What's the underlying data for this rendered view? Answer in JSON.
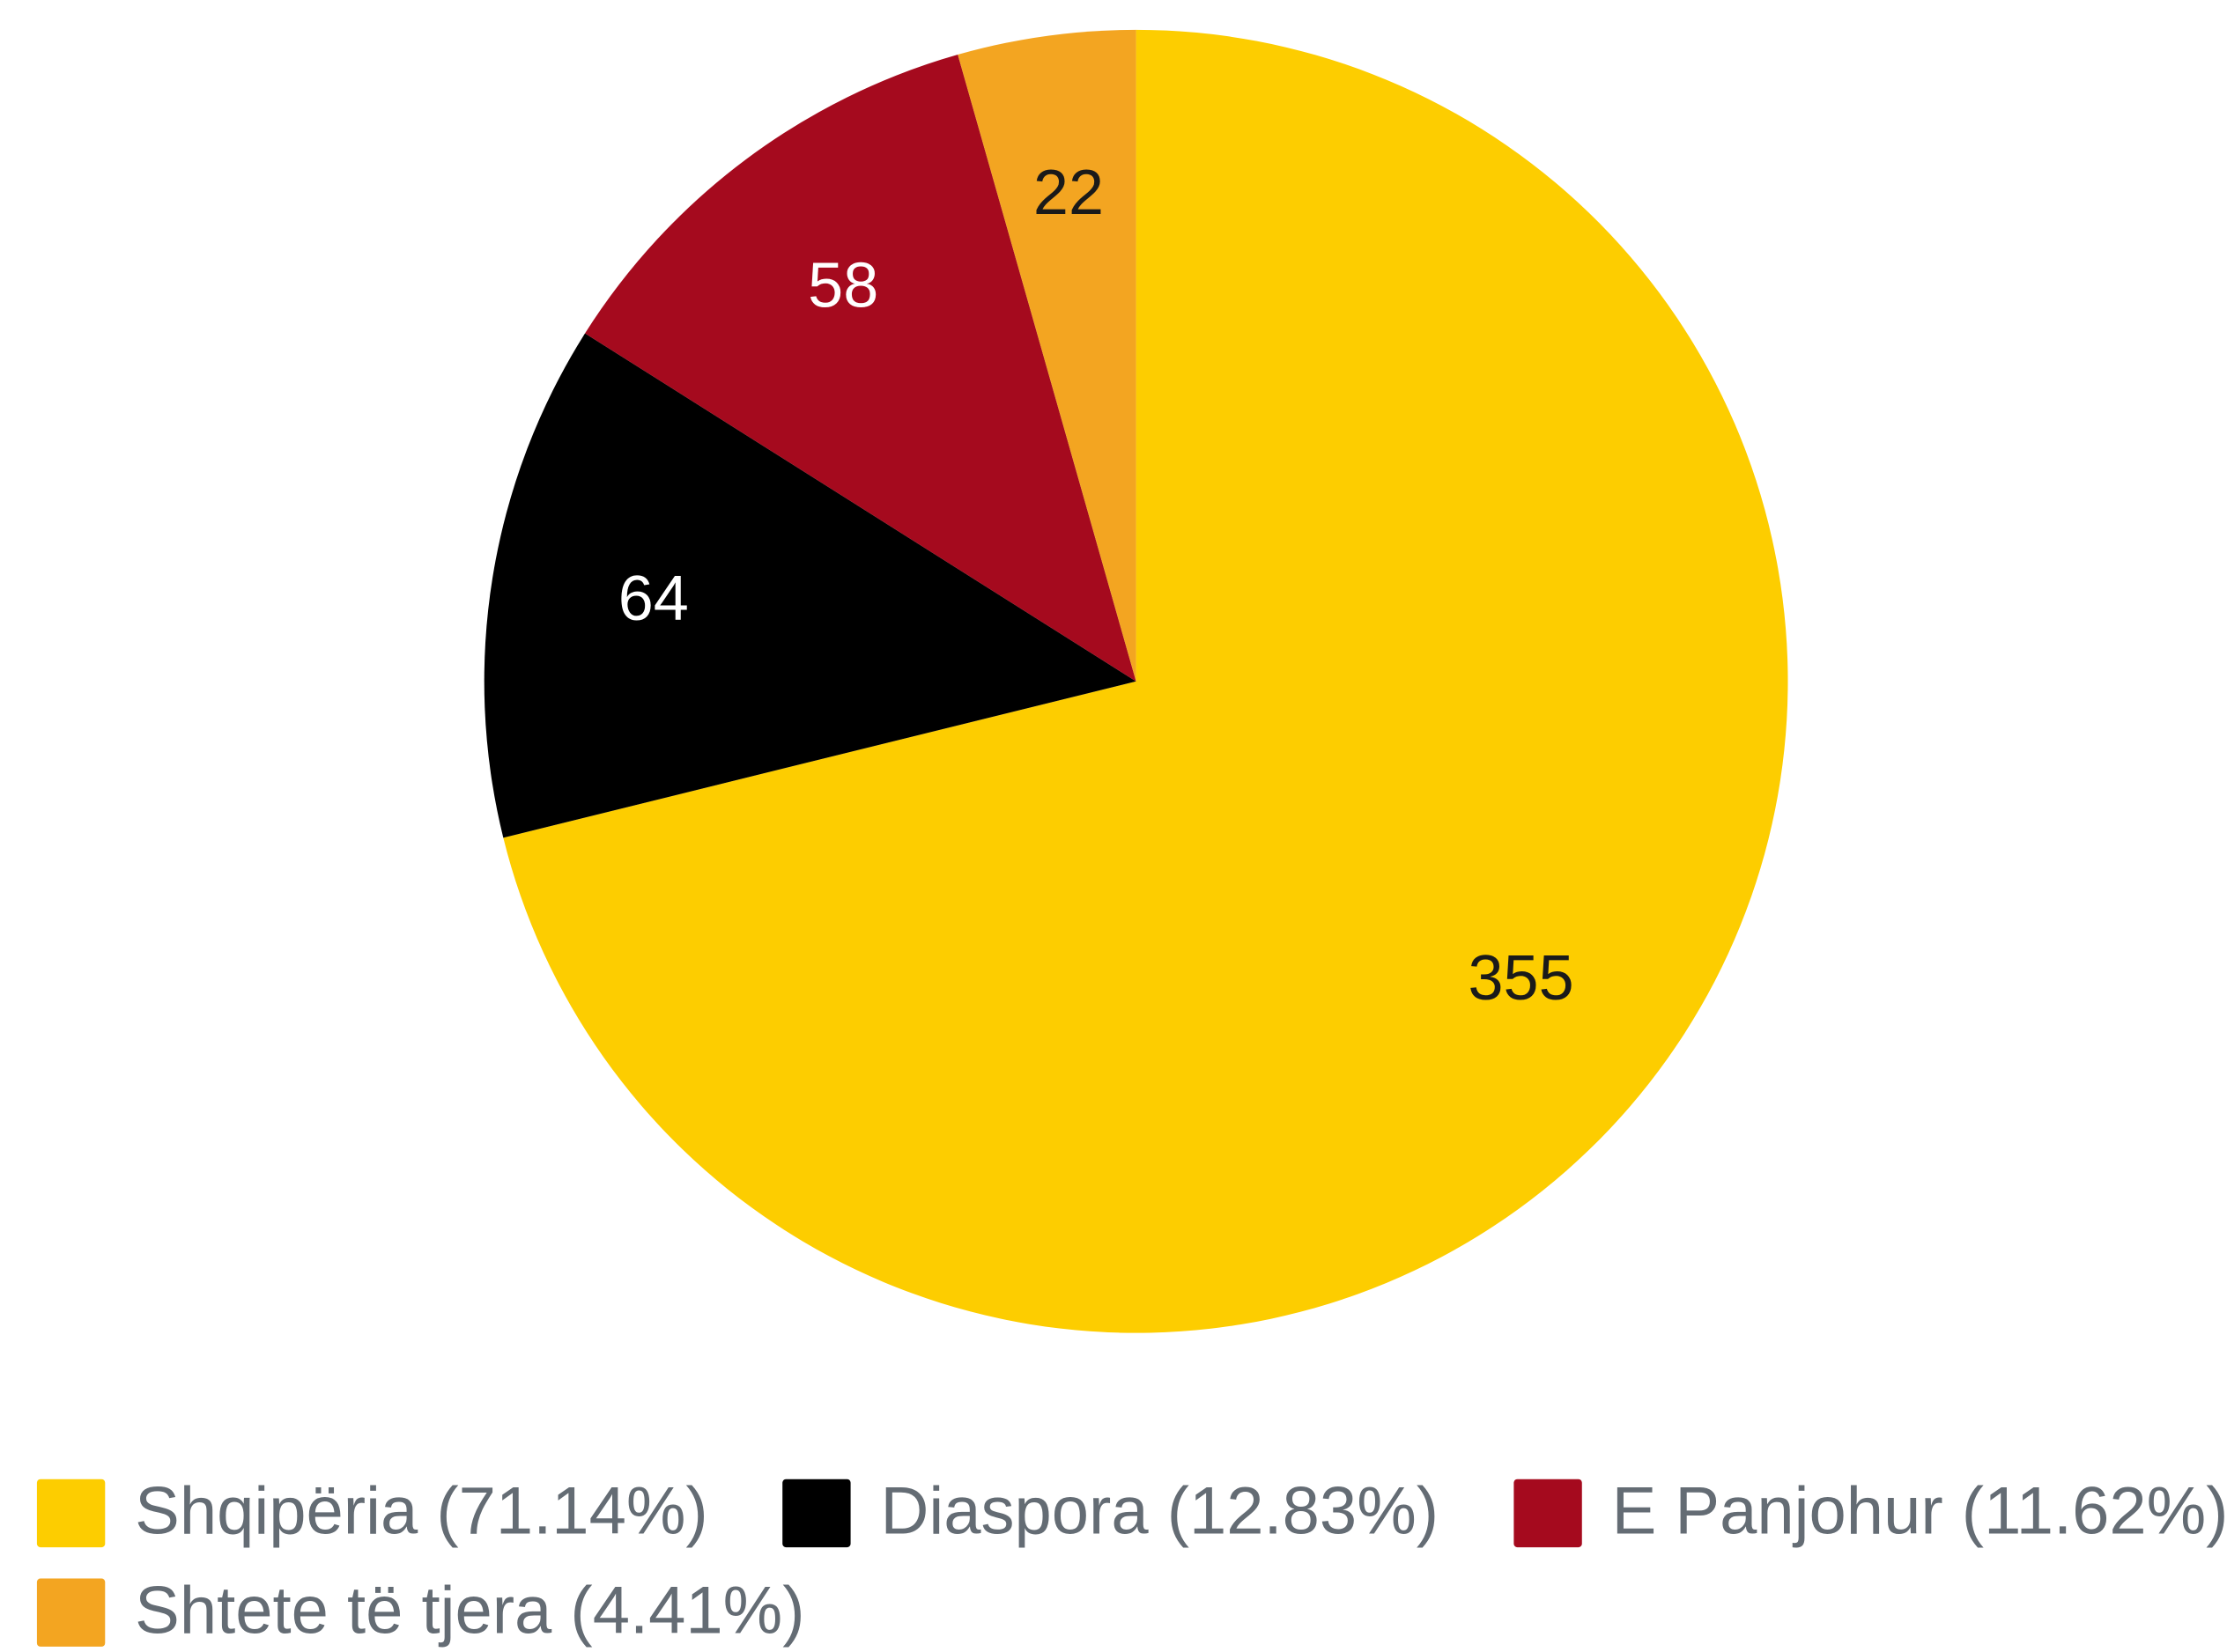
{
  "chart_data": {
    "type": "pie",
    "categories": [
      "Shqipëria (71.14%)",
      "Diaspora (12.83%)",
      "E Panjohur (11.62%)",
      "Shtete të tjera (4.41%)"
    ],
    "values": [
      355,
      64,
      58,
      22
    ],
    "colors": [
      "#fdcd00",
      "#000000",
      "#a50a1e",
      "#f3a521"
    ],
    "label_colors": [
      "#1a1a1a",
      "#ffffff",
      "#ffffff",
      "#1a1a1a"
    ]
  }
}
